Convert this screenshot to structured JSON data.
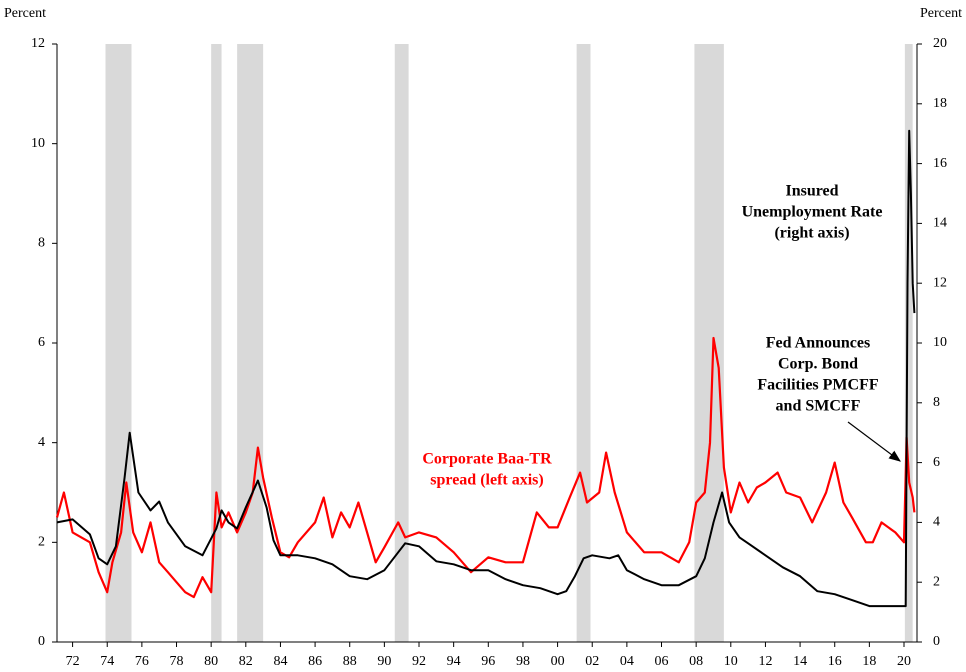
{
  "chart_data": {
    "type": "line",
    "y_label": "Percent",
    "y2_label": "Percent",
    "xlim": [
      1971.1,
      2020.75
    ],
    "xticks": [
      {
        "value": 1972,
        "label": "72"
      },
      {
        "value": 1974,
        "label": "74"
      },
      {
        "value": 1976,
        "label": "76"
      },
      {
        "value": 1978,
        "label": "78"
      },
      {
        "value": 1980,
        "label": "80"
      },
      {
        "value": 1982,
        "label": "82"
      },
      {
        "value": 1984,
        "label": "84"
      },
      {
        "value": 1986,
        "label": "86"
      },
      {
        "value": 1988,
        "label": "88"
      },
      {
        "value": 1990,
        "label": "90"
      },
      {
        "value": 1992,
        "label": "92"
      },
      {
        "value": 1994,
        "label": "94"
      },
      {
        "value": 1996,
        "label": "96"
      },
      {
        "value": 1998,
        "label": "98"
      },
      {
        "value": 2000,
        "label": "00"
      },
      {
        "value": 2002,
        "label": "02"
      },
      {
        "value": 2004,
        "label": "04"
      },
      {
        "value": 2006,
        "label": "06"
      },
      {
        "value": 2008,
        "label": "08"
      },
      {
        "value": 2010,
        "label": "10"
      },
      {
        "value": 2012,
        "label": "12"
      },
      {
        "value": 2014,
        "label": "14"
      },
      {
        "value": 2016,
        "label": "16"
      },
      {
        "value": 2018,
        "label": "18"
      },
      {
        "value": 2020,
        "label": "20"
      }
    ],
    "ylim": [
      0,
      12
    ],
    "yticks": [
      0,
      2,
      4,
      6,
      8,
      10,
      12
    ],
    "y2lim": [
      0,
      20
    ],
    "y2ticks": [
      0,
      2,
      4,
      6,
      8,
      10,
      12,
      14,
      16,
      18,
      20
    ],
    "recessions": [
      [
        1973.9,
        1975.4
      ],
      [
        1980.0,
        1980.6
      ],
      [
        1981.5,
        1983.0
      ],
      [
        1990.6,
        1991.4
      ],
      [
        2001.1,
        2001.9
      ],
      [
        2007.9,
        2009.6
      ],
      [
        2020.05,
        2020.5
      ]
    ],
    "recession_color": "#d9d9d9",
    "series": [
      {
        "name": "Corporate Baa-TR spread (left axis)",
        "color": "#ff0000",
        "axis": "y",
        "x": [
          1971.1,
          1971.5,
          1972,
          1973,
          1973.5,
          1974,
          1974.3,
          1974.8,
          1975.1,
          1975.5,
          1976,
          1976.5,
          1977,
          1977.5,
          1978,
          1978.5,
          1979,
          1979.5,
          1980,
          1980.3,
          1980.6,
          1981,
          1981.5,
          1982,
          1982.4,
          1982.7,
          1983,
          1983.5,
          1984,
          1984.5,
          1985,
          1986,
          1986.5,
          1987,
          1987.5,
          1988,
          1988.5,
          1989,
          1989.5,
          1990,
          1990.8,
          1991.2,
          1992,
          1993,
          1994,
          1995,
          1996,
          1997,
          1998,
          1998.8,
          1999.5,
          2000,
          2000.7,
          2001.3,
          2001.7,
          2002.4,
          2002.8,
          2003.3,
          2004,
          2005,
          2006,
          2007,
          2007.6,
          2008,
          2008.5,
          2008.8,
          2009,
          2009.3,
          2009.6,
          2010,
          2010.5,
          2011,
          2011.5,
          2012,
          2012.7,
          2013.2,
          2014,
          2014.7,
          2015.5,
          2016,
          2016.5,
          2017,
          2017.8,
          2018.2,
          2018.7,
          2019.5,
          2020,
          2020.15,
          2020.3,
          2020.5,
          2020.6
        ],
        "values": [
          2.5,
          3.0,
          2.2,
          2.0,
          1.4,
          1.0,
          1.6,
          2.2,
          3.2,
          2.2,
          1.8,
          2.4,
          1.6,
          1.4,
          1.2,
          1.0,
          0.9,
          1.3,
          1.0,
          3.0,
          2.3,
          2.6,
          2.2,
          2.6,
          3.0,
          3.9,
          3.3,
          2.5,
          1.8,
          1.7,
          2.0,
          2.4,
          2.9,
          2.1,
          2.6,
          2.3,
          2.8,
          2.2,
          1.6,
          1.9,
          2.4,
          2.1,
          2.2,
          2.1,
          1.8,
          1.4,
          1.7,
          1.6,
          1.6,
          2.6,
          2.3,
          2.3,
          2.9,
          3.4,
          2.8,
          3.0,
          3.8,
          3.0,
          2.2,
          1.8,
          1.8,
          1.6,
          2.0,
          2.8,
          3.0,
          4.0,
          6.1,
          5.5,
          3.5,
          2.6,
          3.2,
          2.8,
          3.1,
          3.2,
          3.4,
          3.0,
          2.9,
          2.4,
          3.0,
          3.6,
          2.8,
          2.5,
          2.0,
          2.0,
          2.4,
          2.2,
          2.0,
          4.1,
          3.2,
          2.9,
          2.6
        ]
      },
      {
        "name": "Insured Unemployment Rate (right axis)",
        "color": "#000000",
        "axis": "y2",
        "x": [
          1971.1,
          1972,
          1973,
          1973.5,
          1974,
          1974.5,
          1975,
          1975.3,
          1975.8,
          1976.5,
          1977,
          1977.5,
          1978.5,
          1979.5,
          1980.3,
          1980.6,
          1981,
          1981.5,
          1982,
          1982.7,
          1983.2,
          1983.6,
          1984,
          1985,
          1986,
          1987,
          1988,
          1989,
          1990,
          1990.8,
          1991.2,
          1992,
          1993,
          1994,
          1995,
          1996,
          1997,
          1998,
          1999,
          2000,
          2000.5,
          2001,
          2001.5,
          2002,
          2003,
          2003.5,
          2004,
          2005,
          2006,
          2007,
          2008,
          2008.5,
          2009,
          2009.5,
          2009.9,
          2010.5,
          2011,
          2012,
          2013,
          2014,
          2015,
          2016,
          2017,
          2018,
          2019,
          2020.1,
          2020.2,
          2020.3,
          2020.4,
          2020.5,
          2020.6
        ],
        "values": [
          4.0,
          4.1,
          3.6,
          2.8,
          2.6,
          3.2,
          5.5,
          7.0,
          5.0,
          4.4,
          4.7,
          4.0,
          3.2,
          2.9,
          3.8,
          4.4,
          4.0,
          3.8,
          4.5,
          5.4,
          4.5,
          3.4,
          2.9,
          2.9,
          2.8,
          2.6,
          2.2,
          2.1,
          2.4,
          3.0,
          3.3,
          3.2,
          2.7,
          2.6,
          2.4,
          2.4,
          2.1,
          1.9,
          1.8,
          1.6,
          1.7,
          2.2,
          2.8,
          2.9,
          2.8,
          2.9,
          2.4,
          2.1,
          1.9,
          1.9,
          2.2,
          2.8,
          4.0,
          5.0,
          4.0,
          3.5,
          3.3,
          2.9,
          2.5,
          2.2,
          1.7,
          1.6,
          1.4,
          1.2,
          1.2,
          1.2,
          12,
          17.1,
          15,
          12,
          11
        ]
      }
    ],
    "annotations": [
      {
        "lines": [
          "Insured",
          "Unemployment Rate",
          "(right axis)"
        ]
      },
      {
        "lines": [
          "Fed Announces",
          "Corp. Bond",
          "Facilities PMCFF",
          "and SMCFF"
        ]
      },
      {
        "lines": [
          "Corporate Baa-TR",
          "spread (left axis)"
        ]
      }
    ]
  }
}
